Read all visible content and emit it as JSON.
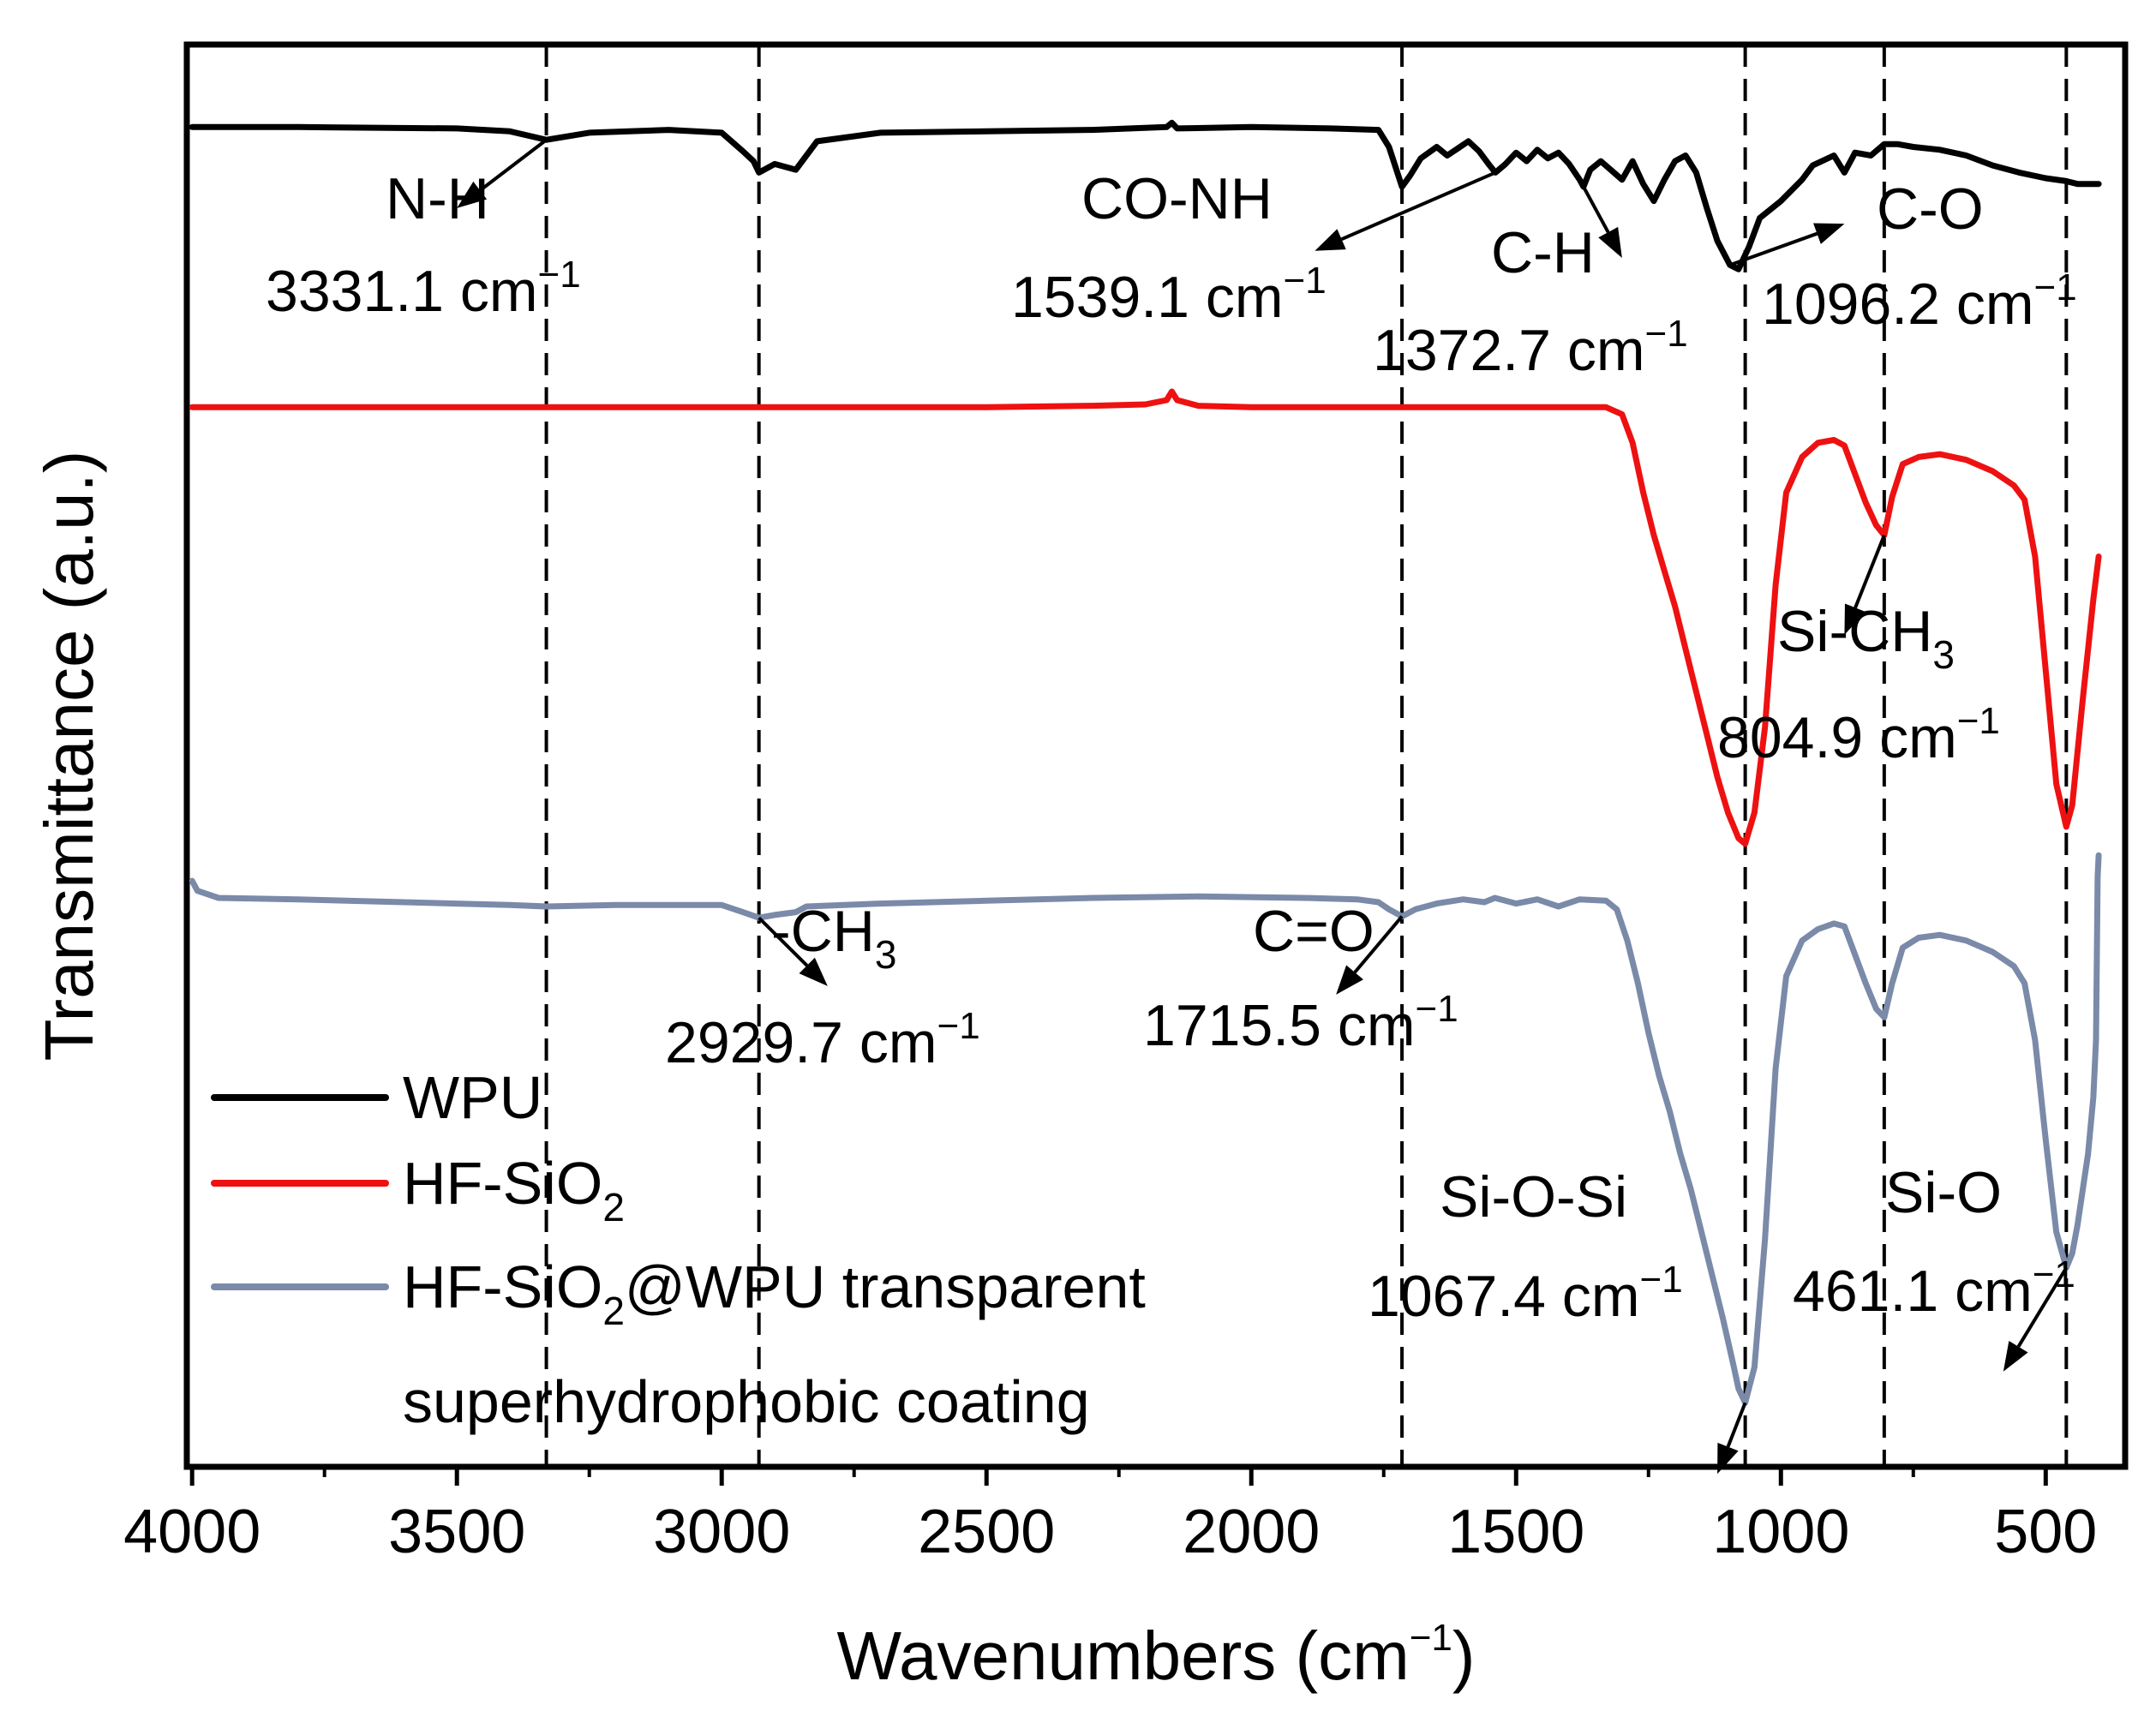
{
  "chart_data": {
    "type": "line",
    "title": "",
    "xlabel": "Wavenumbers",
    "xlabel_unit": "(cm⁻¹)",
    "ylabel": "Transmittance (a.u.)",
    "xlim": [
      4010,
      350
    ],
    "ylim": [
      0,
      10
    ],
    "x_ticks": [
      4000,
      3500,
      3000,
      2500,
      2000,
      1500,
      1000,
      500
    ],
    "x_tick_labels": [
      "4000",
      "3500",
      "3000",
      "2500",
      "2000",
      "1500",
      "1000",
      "500"
    ],
    "y_ticks_shown": false,
    "legend": {
      "position": "bottom-left",
      "entries": [
        {
          "label": "WPU",
          "color": "#000000"
        },
        {
          "label": "HF-SiO₂",
          "color": "#ee1111"
        },
        {
          "label": "HF-SiO₂@WPU transparent superhydrophobic coating",
          "color": "#7a8aa8"
        }
      ]
    },
    "reference_lines_x": [
      3331.1,
      2929.7,
      1715.5,
      1067.4,
      804.9,
      461.1
    ],
    "series": [
      {
        "name": "WPU",
        "color": "#000000",
        "points": [
          [
            4000,
            9.42
          ],
          [
            3800,
            9.42
          ],
          [
            3500,
            9.41
          ],
          [
            3400,
            9.39
          ],
          [
            3331.1,
            9.33
          ],
          [
            3250,
            9.38
          ],
          [
            3100,
            9.4
          ],
          [
            3000,
            9.38
          ],
          [
            2960,
            9.25
          ],
          [
            2940,
            9.18
          ],
          [
            2929.7,
            9.1
          ],
          [
            2900,
            9.16
          ],
          [
            2860,
            9.12
          ],
          [
            2840,
            9.22
          ],
          [
            2820,
            9.32
          ],
          [
            2700,
            9.38
          ],
          [
            2500,
            9.39
          ],
          [
            2300,
            9.4
          ],
          [
            2160,
            9.42
          ],
          [
            2150,
            9.45
          ],
          [
            2140,
            9.41
          ],
          [
            2000,
            9.42
          ],
          [
            1850,
            9.41
          ],
          [
            1760,
            9.4
          ],
          [
            1740,
            9.28
          ],
          [
            1715.5,
            9.0
          ],
          [
            1700,
            9.08
          ],
          [
            1680,
            9.2
          ],
          [
            1650,
            9.28
          ],
          [
            1630,
            9.22
          ],
          [
            1610,
            9.27
          ],
          [
            1590,
            9.32
          ],
          [
            1570,
            9.25
          ],
          [
            1550,
            9.15
          ],
          [
            1539.1,
            9.1
          ],
          [
            1520,
            9.16
          ],
          [
            1500,
            9.24
          ],
          [
            1480,
            9.18
          ],
          [
            1460,
            9.26
          ],
          [
            1440,
            9.2
          ],
          [
            1420,
            9.24
          ],
          [
            1400,
            9.16
          ],
          [
            1380,
            9.05
          ],
          [
            1372.7,
            9.0
          ],
          [
            1360,
            9.12
          ],
          [
            1340,
            9.18
          ],
          [
            1300,
            9.05
          ],
          [
            1280,
            9.18
          ],
          [
            1260,
            9.02
          ],
          [
            1240,
            8.9
          ],
          [
            1220,
            9.05
          ],
          [
            1200,
            9.18
          ],
          [
            1180,
            9.22
          ],
          [
            1160,
            9.1
          ],
          [
            1140,
            8.85
          ],
          [
            1120,
            8.62
          ],
          [
            1096.2,
            8.45
          ],
          [
            1080,
            8.42
          ],
          [
            1060,
            8.58
          ],
          [
            1040,
            8.78
          ],
          [
            1000,
            8.9
          ],
          [
            960,
            9.05
          ],
          [
            940,
            9.15
          ],
          [
            900,
            9.22
          ],
          [
            880,
            9.1
          ],
          [
            860,
            9.24
          ],
          [
            830,
            9.22
          ],
          [
            804.9,
            9.3
          ],
          [
            780,
            9.3
          ],
          [
            750,
            9.28
          ],
          [
            700,
            9.26
          ],
          [
            650,
            9.22
          ],
          [
            600,
            9.15
          ],
          [
            550,
            9.1
          ],
          [
            500,
            9.06
          ],
          [
            461.1,
            9.04
          ],
          [
            440,
            9.02
          ],
          [
            400,
            9.02
          ]
        ]
      },
      {
        "name": "HF-SiO₂",
        "color": "#ee1111",
        "points": [
          [
            4000,
            7.45
          ],
          [
            3500,
            7.45
          ],
          [
            3000,
            7.45
          ],
          [
            2500,
            7.45
          ],
          [
            2300,
            7.46
          ],
          [
            2200,
            7.47
          ],
          [
            2160,
            7.5
          ],
          [
            2150,
            7.56
          ],
          [
            2140,
            7.5
          ],
          [
            2100,
            7.46
          ],
          [
            2000,
            7.45
          ],
          [
            1800,
            7.45
          ],
          [
            1500,
            7.45
          ],
          [
            1330,
            7.45
          ],
          [
            1300,
            7.4
          ],
          [
            1280,
            7.2
          ],
          [
            1260,
            6.85
          ],
          [
            1240,
            6.55
          ],
          [
            1220,
            6.3
          ],
          [
            1200,
            6.05
          ],
          [
            1180,
            5.75
          ],
          [
            1160,
            5.45
          ],
          [
            1140,
            5.15
          ],
          [
            1120,
            4.85
          ],
          [
            1100,
            4.6
          ],
          [
            1080,
            4.42
          ],
          [
            1067.4,
            4.38
          ],
          [
            1050,
            4.6
          ],
          [
            1030,
            5.2
          ],
          [
            1010,
            6.2
          ],
          [
            990,
            6.85
          ],
          [
            960,
            7.1
          ],
          [
            930,
            7.2
          ],
          [
            900,
            7.22
          ],
          [
            880,
            7.18
          ],
          [
            860,
            6.98
          ],
          [
            840,
            6.78
          ],
          [
            820,
            6.62
          ],
          [
            804.9,
            6.55
          ],
          [
            790,
            6.82
          ],
          [
            770,
            7.05
          ],
          [
            740,
            7.1
          ],
          [
            700,
            7.12
          ],
          [
            650,
            7.08
          ],
          [
            600,
            7.0
          ],
          [
            560,
            6.9
          ],
          [
            540,
            6.8
          ],
          [
            520,
            6.4
          ],
          [
            500,
            5.6
          ],
          [
            480,
            4.8
          ],
          [
            461.1,
            4.5
          ],
          [
            450,
            4.65
          ],
          [
            430,
            5.4
          ],
          [
            410,
            6.1
          ],
          [
            400,
            6.4
          ]
        ]
      },
      {
        "name": "HF-SiO₂@WPU transparent superhydrophobic coating",
        "color": "#7a8aa8",
        "points": [
          [
            4000,
            4.12
          ],
          [
            3990,
            4.05
          ],
          [
            3950,
            4.0
          ],
          [
            3800,
            3.99
          ],
          [
            3600,
            3.97
          ],
          [
            3400,
            3.95
          ],
          [
            3331.1,
            3.94
          ],
          [
            3200,
            3.95
          ],
          [
            3000,
            3.95
          ],
          [
            2960,
            3.9
          ],
          [
            2929.7,
            3.86
          ],
          [
            2900,
            3.88
          ],
          [
            2860,
            3.9
          ],
          [
            2840,
            3.94
          ],
          [
            2700,
            3.96
          ],
          [
            2500,
            3.98
          ],
          [
            2300,
            4.0
          ],
          [
            2100,
            4.01
          ],
          [
            1900,
            4.0
          ],
          [
            1800,
            3.99
          ],
          [
            1760,
            3.97
          ],
          [
            1740,
            3.92
          ],
          [
            1715.5,
            3.87
          ],
          [
            1690,
            3.92
          ],
          [
            1650,
            3.96
          ],
          [
            1600,
            3.99
          ],
          [
            1560,
            3.97
          ],
          [
            1540,
            4.0
          ],
          [
            1500,
            3.96
          ],
          [
            1460,
            3.99
          ],
          [
            1420,
            3.94
          ],
          [
            1380,
            3.99
          ],
          [
            1330,
            3.98
          ],
          [
            1310,
            3.92
          ],
          [
            1290,
            3.7
          ],
          [
            1270,
            3.4
          ],
          [
            1250,
            3.05
          ],
          [
            1230,
            2.75
          ],
          [
            1210,
            2.5
          ],
          [
            1190,
            2.2
          ],
          [
            1170,
            1.95
          ],
          [
            1150,
            1.65
          ],
          [
            1130,
            1.35
          ],
          [
            1110,
            1.05
          ],
          [
            1090,
            0.72
          ],
          [
            1080,
            0.55
          ],
          [
            1067.4,
            0.45
          ],
          [
            1050,
            0.7
          ],
          [
            1030,
            1.6
          ],
          [
            1010,
            2.8
          ],
          [
            990,
            3.45
          ],
          [
            960,
            3.7
          ],
          [
            930,
            3.78
          ],
          [
            900,
            3.82
          ],
          [
            880,
            3.8
          ],
          [
            860,
            3.6
          ],
          [
            840,
            3.4
          ],
          [
            820,
            3.22
          ],
          [
            804.9,
            3.16
          ],
          [
            790,
            3.4
          ],
          [
            770,
            3.65
          ],
          [
            740,
            3.72
          ],
          [
            700,
            3.74
          ],
          [
            650,
            3.7
          ],
          [
            600,
            3.62
          ],
          [
            560,
            3.52
          ],
          [
            540,
            3.4
          ],
          [
            520,
            3.0
          ],
          [
            500,
            2.3
          ],
          [
            480,
            1.65
          ],
          [
            461.1,
            1.4
          ],
          [
            450,
            1.5
          ],
          [
            440,
            1.7
          ],
          [
            420,
            2.2
          ],
          [
            410,
            2.6
          ],
          [
            405,
            3.0
          ],
          [
            402,
            4.15
          ],
          [
            400,
            4.3
          ]
        ]
      }
    ],
    "annotations": [
      {
        "group": "N-H",
        "label": "N-H",
        "value": "3331.1",
        "unit_base": "cm",
        "unit_sup": "−1"
      },
      {
        "group": "CO-NH",
        "label": "CO-NH",
        "value": "1539.1",
        "unit_base": "cm",
        "unit_sup": "−1"
      },
      {
        "group": "C-H",
        "label": "C-H",
        "value": "1372.7",
        "unit_base": "cm",
        "unit_sup": "−1"
      },
      {
        "group": "C-O",
        "label": "C-O",
        "value": "1096.2",
        "unit_base": "cm",
        "unit_sup": "−1"
      },
      {
        "group": "Si-CH3",
        "label_base": "Si-CH",
        "label_sub": "3",
        "value": "804.9",
        "unit_base": "cm",
        "unit_sup": "−1"
      },
      {
        "group": "CH3",
        "label_base": "-CH",
        "label_sub": "3",
        "value": "2929.7",
        "unit_base": "cm",
        "unit_sup": "−1"
      },
      {
        "group": "C=O",
        "label": "C=O",
        "value": "1715.5",
        "unit_base": "cm",
        "unit_sup": "−1"
      },
      {
        "group": "Si-O-Si",
        "label": "Si-O-Si",
        "value": "1067.4",
        "unit_base": "cm",
        "unit_sup": "−1"
      },
      {
        "group": "Si-O",
        "label": "Si-O",
        "value": "461.1",
        "unit_base": "cm",
        "unit_sup": "−1"
      }
    ]
  },
  "text": {
    "xlabel_main": "Wavenumbers (cm",
    "xlabel_sup": "−1",
    "xlabel_close": ")",
    "ylabel": "Transmittance (a.u.)",
    "legend_wpu": "WPU",
    "legend_hf_base": "HF-SiO",
    "legend_hf_sub": "2",
    "legend_comp_base": "HF-SiO",
    "legend_comp_sub": "2",
    "legend_comp_rest": "@WPU transparent",
    "legend_comp_line2": "superhydrophobic coating"
  }
}
